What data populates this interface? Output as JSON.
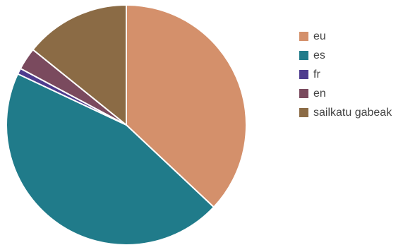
{
  "chart_data": {
    "type": "pie",
    "title": "",
    "legend_position": "right",
    "series": [
      {
        "name": "eu",
        "value": 37.0,
        "color": "#d4906b"
      },
      {
        "name": "es",
        "value": 45.0,
        "color": "#207b8a"
      },
      {
        "name": "fr",
        "value": 0.8,
        "color": "#4e3c8e"
      },
      {
        "name": "en",
        "value": 3.0,
        "color": "#7a4a5e"
      },
      {
        "name": "sailkatu gabeak",
        "value": 14.2,
        "color": "#8b6b45"
      }
    ]
  }
}
